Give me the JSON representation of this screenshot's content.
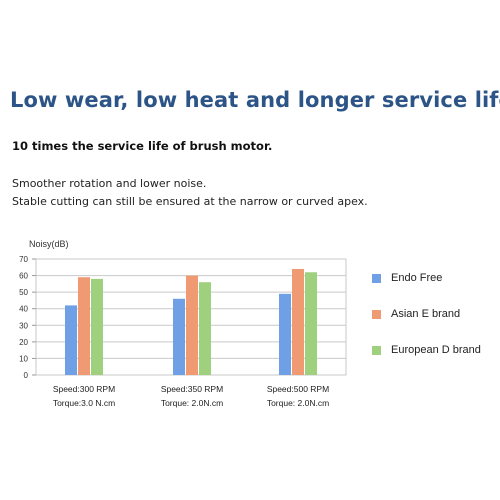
{
  "heading": "Low wear, low heat and longer service life",
  "subheading": "10 times the service life of brush motor.",
  "description": [
    "Smoother rotation and lower noise.",
    "Stable cutting can still be ensured at the narrow or curved apex."
  ],
  "chart_data": {
    "type": "bar",
    "ylabel": "Noisy(dB)",
    "xlabel": "",
    "ylim": [
      0,
      70
    ],
    "yticks": [
      0,
      10,
      20,
      30,
      40,
      50,
      60,
      70
    ],
    "grid": true,
    "legend_position": "right",
    "categories": [
      [
        "Speed:300 RPM",
        "Torque:3.0 N.cm"
      ],
      [
        "Speed:350 RPM",
        "Torque: 2.0N.cm"
      ],
      [
        "Speed:500 RPM",
        "Torque: 2.0N.cm"
      ]
    ],
    "series": [
      {
        "name": "Endo Free",
        "color": "#6fa0e6",
        "values": [
          42,
          46,
          49
        ]
      },
      {
        "name": "Asian E brand",
        "color": "#ef9a72",
        "values": [
          59,
          60,
          64
        ]
      },
      {
        "name": "European D brand",
        "color": "#9fd07e",
        "values": [
          58,
          56,
          62
        ]
      }
    ]
  }
}
